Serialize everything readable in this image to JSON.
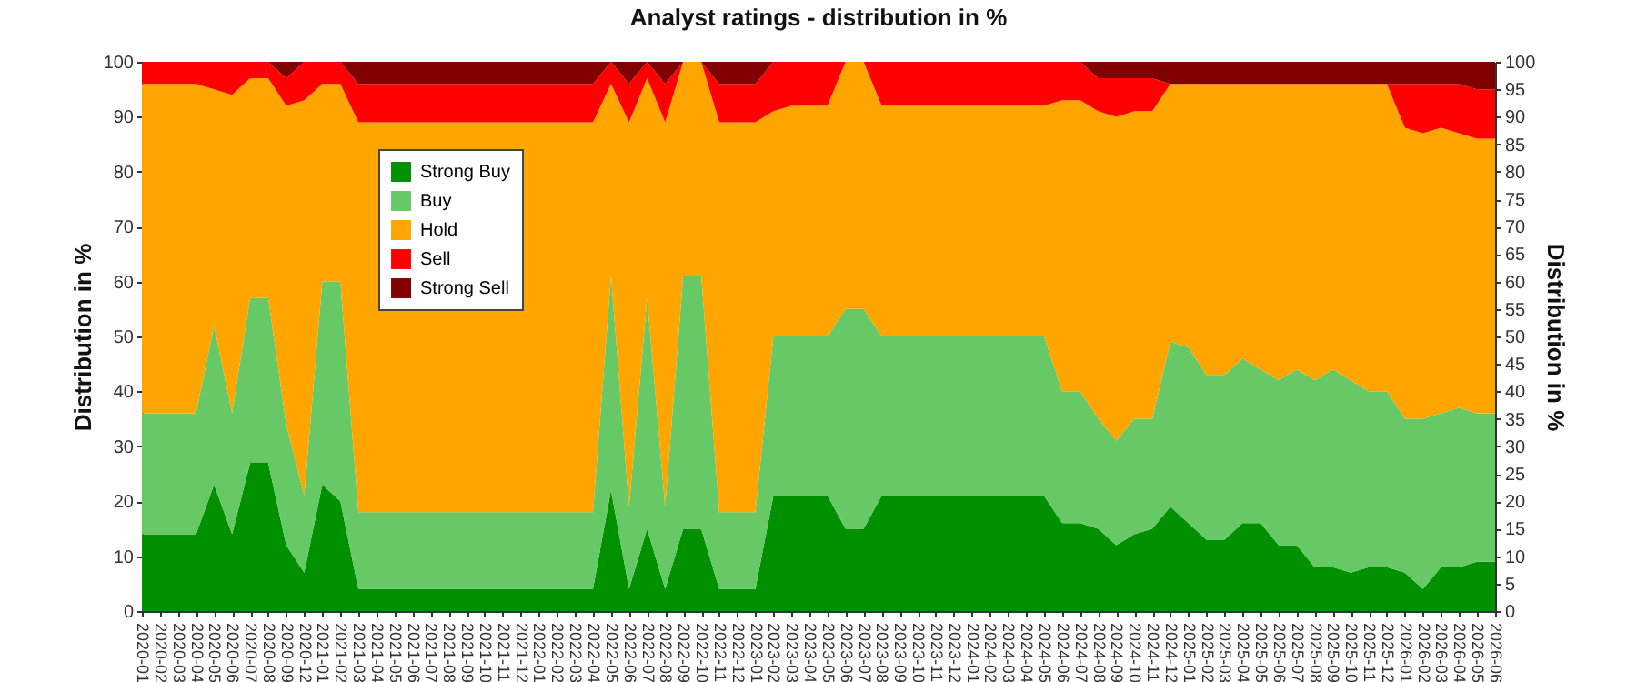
{
  "chart_data": {
    "type": "area",
    "title": "Analyst ratings - distribution in %",
    "ylabel": "Distribution in %",
    "y2label": "Distribution in %",
    "categories": [
      "2020-01",
      "2020-02",
      "2020-03",
      "2020-04",
      "2020-05",
      "2020-06",
      "2020-07",
      "2020-08",
      "2020-09",
      "2020-12",
      "2021-01",
      "2021-02",
      "2021-03",
      "2021-04",
      "2021-05",
      "2021-06",
      "2021-07",
      "2021-08",
      "2021-09",
      "2021-10",
      "2021-11",
      "2021-12",
      "2022-01",
      "2022-02",
      "2022-03",
      "2022-04",
      "2022-05",
      "2022-06",
      "2022-07",
      "2022-08",
      "2022-09",
      "2022-10",
      "2022-11",
      "2022-12",
      "2023-01",
      "2023-02",
      "2023-03",
      "2023-04",
      "2023-05",
      "2023-06",
      "2023-07",
      "2023-08",
      "2023-09",
      "2023-10",
      "2023-11",
      "2023-12",
      "2024-01",
      "2024-02",
      "2024-03",
      "2024-04",
      "2024-05",
      "2024-06",
      "2024-07",
      "2024-08",
      "2024-09",
      "2024-10",
      "2024-11",
      "2024-12",
      "2025-01",
      "2025-02",
      "2025-03",
      "2025-04",
      "2025-05",
      "2025-06",
      "2025-07",
      "2025-08",
      "2025-09",
      "2025-10",
      "2025-11",
      "2025-12",
      "2026-01",
      "2026-02",
      "2026-03",
      "2026-04",
      "2026-05",
      "2026-06"
    ],
    "series": [
      {
        "name": "Strong Buy",
        "color": "#009000",
        "values": [
          14,
          14,
          14,
          14,
          23,
          14,
          27,
          27,
          12,
          7,
          23,
          20,
          4,
          4,
          4,
          4,
          4,
          4,
          4,
          4,
          4,
          4,
          4,
          4,
          4,
          4,
          22,
          4,
          15,
          4,
          15,
          15,
          4,
          4,
          4,
          21,
          21,
          21,
          21,
          15,
          15,
          21,
          21,
          21,
          21,
          21,
          21,
          21,
          21,
          21,
          21,
          16,
          16,
          15,
          12,
          14,
          15,
          19,
          16,
          13,
          13,
          16,
          16,
          12,
          12,
          8,
          8,
          7,
          8,
          8,
          7,
          4,
          8,
          8,
          9,
          9
        ]
      },
      {
        "name": "Buy",
        "color": "#66c966",
        "values": [
          22,
          22,
          22,
          22,
          29,
          22,
          30,
          30,
          22,
          14,
          37,
          40,
          14,
          14,
          14,
          14,
          14,
          14,
          14,
          14,
          14,
          14,
          14,
          14,
          14,
          14,
          39,
          15,
          42,
          15,
          46,
          46,
          14,
          14,
          14,
          29,
          29,
          29,
          29,
          40,
          40,
          29,
          29,
          29,
          29,
          29,
          29,
          29,
          29,
          29,
          29,
          24,
          24,
          20,
          19,
          21,
          20,
          30,
          32,
          30,
          30,
          30,
          28,
          30,
          32,
          34,
          36,
          35,
          32,
          32,
          28,
          31,
          28,
          29,
          27,
          27
        ]
      },
      {
        "name": "Hold",
        "color": "#ffa500",
        "values": [
          60,
          60,
          60,
          60,
          43,
          58,
          40,
          40,
          58,
          72,
          36,
          36,
          71,
          71,
          71,
          71,
          71,
          71,
          71,
          71,
          71,
          71,
          71,
          71,
          71,
          71,
          35,
          70,
          40,
          70,
          39,
          39,
          71,
          71,
          71,
          41,
          42,
          42,
          42,
          45,
          45,
          42,
          42,
          42,
          42,
          42,
          42,
          42,
          42,
          42,
          42,
          53,
          53,
          56,
          59,
          56,
          56,
          47,
          48,
          53,
          53,
          50,
          52,
          54,
          52,
          54,
          52,
          54,
          56,
          56,
          53,
          52,
          52,
          50,
          50,
          50
        ]
      },
      {
        "name": "Sell",
        "color": "#ff0000",
        "values": [
          4,
          4,
          4,
          4,
          5,
          6,
          3,
          3,
          5,
          7,
          4,
          4,
          7,
          7,
          7,
          7,
          7,
          7,
          7,
          7,
          7,
          7,
          7,
          7,
          7,
          7,
          4,
          7,
          3,
          7,
          0,
          0,
          7,
          7,
          7,
          9,
          8,
          8,
          8,
          0,
          0,
          8,
          8,
          8,
          8,
          8,
          8,
          8,
          8,
          8,
          8,
          7,
          7,
          6,
          7,
          6,
          6,
          0,
          0,
          0,
          0,
          0,
          0,
          0,
          0,
          0,
          0,
          0,
          0,
          0,
          8,
          9,
          8,
          9,
          9,
          9
        ]
      },
      {
        "name": "Strong Sell",
        "color": "#800000",
        "values": [
          0,
          0,
          0,
          0,
          0,
          0,
          0,
          0,
          3,
          0,
          0,
          0,
          4,
          4,
          4,
          4,
          4,
          4,
          4,
          4,
          4,
          4,
          4,
          4,
          4,
          4,
          0,
          4,
          0,
          4,
          0,
          0,
          4,
          4,
          4,
          0,
          0,
          0,
          0,
          0,
          0,
          0,
          0,
          0,
          0,
          0,
          0,
          0,
          0,
          0,
          0,
          0,
          0,
          3,
          3,
          3,
          3,
          4,
          4,
          4,
          4,
          4,
          4,
          4,
          4,
          4,
          4,
          4,
          4,
          4,
          4,
          4,
          4,
          4,
          5,
          5
        ]
      }
    ],
    "stacked": true,
    "ylim": [
      0,
      100
    ],
    "yticks": [
      0,
      10,
      20,
      30,
      40,
      50,
      60,
      70,
      80,
      90,
      100
    ],
    "y2lim": [
      0,
      100
    ],
    "y2ticks": [
      0,
      5,
      10,
      15,
      20,
      25,
      30,
      35,
      40,
      45,
      50,
      55,
      60,
      65,
      70,
      75,
      80,
      85,
      90,
      95,
      100
    ],
    "grid": true,
    "legend": "top left"
  }
}
